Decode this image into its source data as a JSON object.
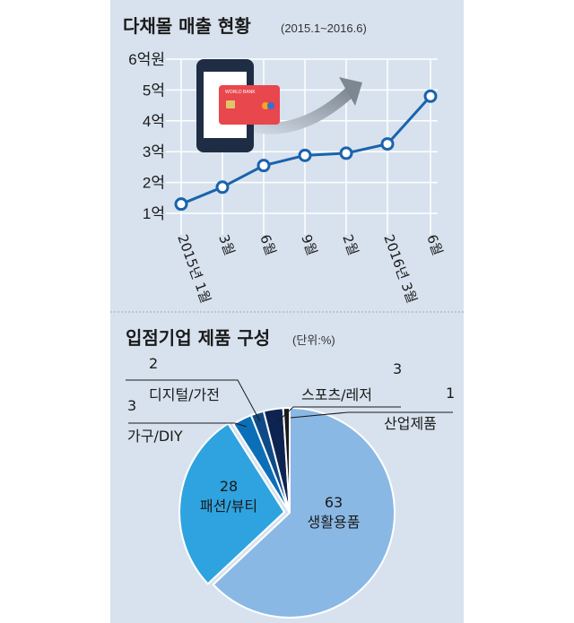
{
  "chart_data": [
    {
      "type": "line",
      "title": "다채몰 매출 현황",
      "subtitle": "(2015.1~2016.6)",
      "x": [
        "2015년 1월",
        "3월",
        "6월",
        "9월",
        "2월",
        "2016년 3월",
        "6월"
      ],
      "y_ticks": [
        "1억",
        "2억",
        "3억",
        "4억",
        "5억",
        "6억원"
      ],
      "ylim": [
        1,
        6
      ],
      "series": [
        {
          "values": [
            1.3,
            1.85,
            2.55,
            2.88,
            2.95,
            3.25,
            4.8
          ]
        }
      ],
      "grid": true,
      "colors": {
        "line": "#1a63ad",
        "marker_fill": "#ffffff",
        "grid": "#ffffff"
      }
    },
    {
      "type": "pie",
      "title": "입점기업 제품 구성",
      "subtitle": "(단위:%)",
      "slices": [
        {
          "label": "생활용품",
          "value": 63,
          "color": "#8ab8e4"
        },
        {
          "label": "패션/뷰티",
          "value": 28,
          "color": "#2ea3e0"
        },
        {
          "label": "가구/DIY",
          "value": 3,
          "color": "#0b6fb8"
        },
        {
          "label": "디지털/가전",
          "value": 2,
          "color": "#104a86"
        },
        {
          "label": "스포츠/레저",
          "value": 3,
          "color": "#0e2450"
        },
        {
          "label": "산업제품",
          "value": 1,
          "color": "#1a1a1a"
        }
      ]
    }
  ],
  "illustration": {
    "card_text": "WORLD BANK",
    "icons": [
      "smartphone-icon",
      "credit-card-icon",
      "arrow-icon"
    ]
  }
}
